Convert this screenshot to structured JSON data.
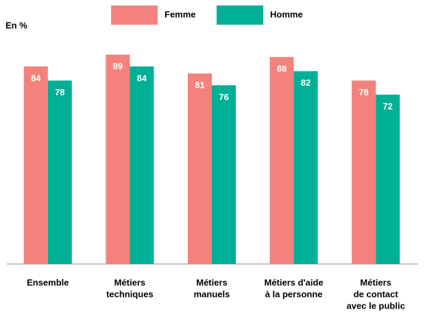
{
  "chart_data": {
    "type": "bar",
    "unit_label": "En %",
    "categories": [
      [
        "Ensemble"
      ],
      [
        "Métiers",
        "techniques"
      ],
      [
        "Métiers",
        "manuels"
      ],
      [
        "Métiers d'aide",
        "à la personne"
      ],
      [
        "Métiers",
        "de contact",
        "avec le public"
      ]
    ],
    "series": [
      {
        "name": "Femme",
        "color": "#f4827c",
        "values": [
          84,
          89,
          81,
          88,
          78
        ]
      },
      {
        "name": "Homme",
        "color": "#00b096",
        "values": [
          78,
          84,
          76,
          82,
          72
        ]
      }
    ],
    "ylim": [
      0,
      100
    ]
  }
}
